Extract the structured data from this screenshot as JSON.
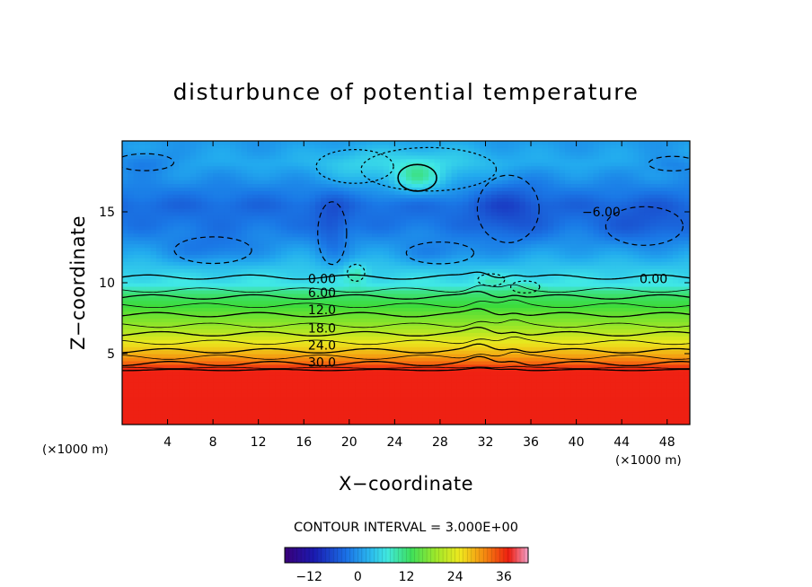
{
  "chart_data": {
    "type": "heatmap",
    "title": "disturbunce of potential temperature",
    "xlabel": "X−coordinate",
    "ylabel": "Z−coordinate",
    "x_unit": "(×1000 m)",
    "z_unit": "(×1000 m)",
    "xlim": [
      0,
      50
    ],
    "ylim": [
      0,
      20
    ],
    "x_ticks": [
      4,
      8,
      12,
      16,
      20,
      24,
      28,
      32,
      36,
      40,
      44,
      48
    ],
    "y_ticks": [
      5,
      10,
      15
    ],
    "contour_interval_text": "CONTOUR INTERVAL = 3.000E+00",
    "contour_interval": 3.0,
    "colorbar": {
      "min": -18,
      "max": 42,
      "ticks": [
        -12,
        0,
        12,
        24,
        36
      ]
    },
    "field_profile": {
      "z": [
        0,
        3.8,
        4.0,
        4.3,
        5.2,
        6.0,
        7.0,
        8.0,
        9.0,
        9.8,
        10.4,
        11.0,
        12.0,
        14.0,
        15.5,
        17.0,
        18.5,
        20.0
      ],
      "theta": [
        38,
        37,
        33,
        30,
        24,
        20,
        15,
        11,
        6,
        1,
        0,
        -1,
        -3,
        -6,
        -7,
        -5,
        -3,
        -4
      ]
    },
    "contour_labels": [
      {
        "text": "0.00",
        "x": 17.6,
        "z": 10.3
      },
      {
        "text": "6.00",
        "x": 17.6,
        "z": 9.3
      },
      {
        "text": "12.0",
        "x": 17.6,
        "z": 8.1
      },
      {
        "text": "18.0",
        "x": 17.6,
        "z": 6.8
      },
      {
        "text": "24.0",
        "x": 17.6,
        "z": 5.6
      },
      {
        "text": "30.0",
        "x": 17.6,
        "z": 4.4
      },
      {
        "text": "0.00",
        "x": 46.8,
        "z": 10.3
      },
      {
        "text": "−6.00",
        "x": 42.2,
        "z": 15.0
      }
    ],
    "anomalies": [
      {
        "x": 26.0,
        "z": 17.4,
        "rx": 2.0,
        "rz": 1.1,
        "amp": 4.5,
        "solid": true
      },
      {
        "x": 27.0,
        "z": 18.0,
        "rx": 7.0,
        "rz": 1.8,
        "amp": 2.8,
        "solid": false
      },
      {
        "x": 20.5,
        "z": 18.2,
        "rx": 4.0,
        "rz": 1.4,
        "amp": 1.5,
        "solid": false
      },
      {
        "x": 8.0,
        "z": 12.3,
        "rx": 4.0,
        "rz": 1.1,
        "amp": -2.5,
        "solid": false
      },
      {
        "x": 28.0,
        "z": 12.1,
        "rx": 3.5,
        "rz": 0.9,
        "amp": -2.0,
        "solid": false
      },
      {
        "x": 18.5,
        "z": 13.5,
        "rx": 1.5,
        "rz": 2.6,
        "amp": -2.5,
        "solid": false
      },
      {
        "x": 34.0,
        "z": 15.2,
        "rx": 3.2,
        "rz": 2.8,
        "amp": -2.5,
        "solid": false
      },
      {
        "x": 46.0,
        "z": 14.0,
        "rx": 4.0,
        "rz": 1.6,
        "amp": -2.0,
        "solid": false
      },
      {
        "x": 2.0,
        "z": 18.5,
        "rx": 3.0,
        "rz": 0.7,
        "amp": -2.5,
        "solid": false
      },
      {
        "x": 48.5,
        "z": 18.4,
        "rx": 2.5,
        "rz": 0.6,
        "amp": -2.0,
        "solid": false
      },
      {
        "x": 20.6,
        "z": 10.7,
        "rx": 0.9,
        "rz": 0.7,
        "amp": 3.0,
        "solid": false
      },
      {
        "x": 32.5,
        "z": 10.2,
        "rx": 1.4,
        "rz": 0.5,
        "amp": 1.5,
        "solid": false
      },
      {
        "x": 35.5,
        "z": 9.7,
        "rx": 1.5,
        "rz": 0.5,
        "amp": 1.5,
        "solid": false
      }
    ]
  }
}
